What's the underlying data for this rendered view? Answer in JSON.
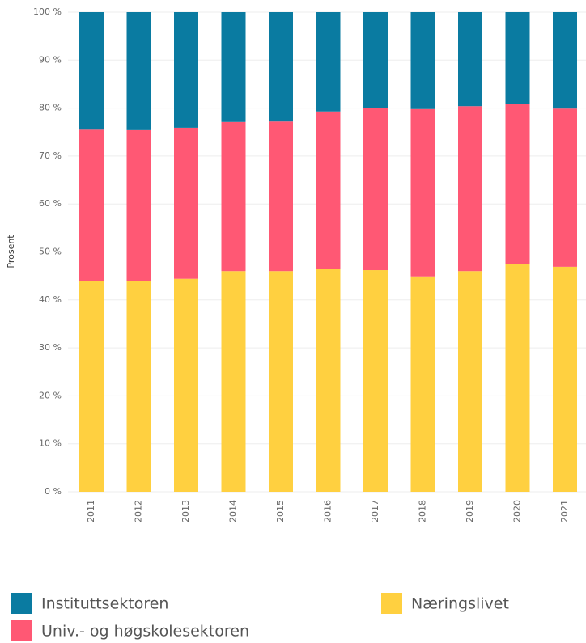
{
  "chart_data": {
    "type": "stacked_bar",
    "y_label": "Prosent",
    "categories": [
      "2011",
      "2012",
      "2013",
      "2014",
      "2015",
      "2016",
      "2017",
      "2018",
      "2019",
      "2020",
      "2021"
    ],
    "series": [
      {
        "name": "Næringslivet",
        "color": "#ffd040",
        "values": [
          44.0,
          44.0,
          44.4,
          46.0,
          46.0,
          46.4,
          46.2,
          44.9,
          46.0,
          47.4,
          46.9
        ]
      },
      {
        "name": "Univ.- og høgskolesektoren",
        "color": "#ff5874",
        "values": [
          31.5,
          31.4,
          31.5,
          31.1,
          31.2,
          32.9,
          33.9,
          34.9,
          34.4,
          33.5,
          33.0
        ]
      },
      {
        "name": "Instituttsektoren",
        "color": "#0a7ba1",
        "values": [
          24.5,
          24.6,
          24.1,
          22.9,
          22.8,
          20.7,
          19.9,
          20.2,
          19.6,
          19.1,
          20.1
        ]
      }
    ],
    "ylim": [
      0,
      100
    ],
    "yticks": [
      {
        "value": 0,
        "label": "0 %"
      },
      {
        "value": 10,
        "label": "10 %"
      },
      {
        "value": 20,
        "label": "20 %"
      },
      {
        "value": 30,
        "label": "30 %"
      },
      {
        "value": 40,
        "label": "40 %"
      },
      {
        "value": 50,
        "label": "50 %"
      },
      {
        "value": 60,
        "label": "60 %"
      },
      {
        "value": 70,
        "label": "70 %"
      },
      {
        "value": 80,
        "label": "80 %"
      },
      {
        "value": 90,
        "label": "90 %"
      },
      {
        "value": 100,
        "label": "100 %"
      }
    ],
    "grid": true
  }
}
